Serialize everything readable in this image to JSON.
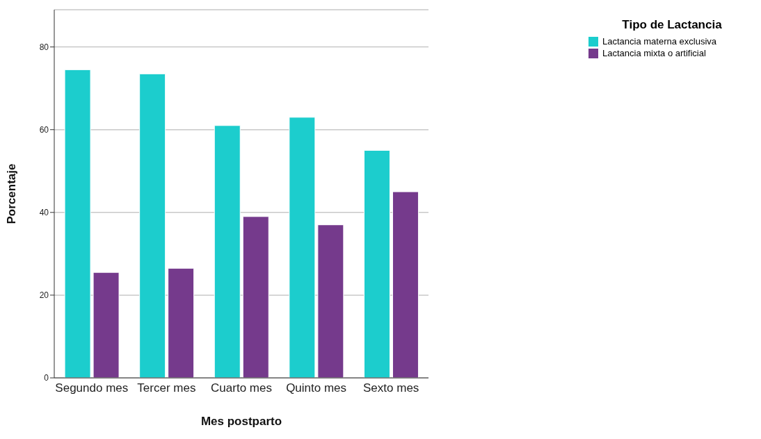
{
  "chart_data": {
    "type": "bar",
    "xlabel": "Mes postparto",
    "ylabel": "Porcentaje",
    "legend_title": "Tipo de Lactancia",
    "categories": [
      "Segundo mes",
      "Tercer mes",
      "Cuarto mes",
      "Quinto mes",
      "Sexto mes"
    ],
    "series": [
      {
        "name": "Lactancia materna exclusiva",
        "color": "#1ccdcd",
        "values": [
          74.5,
          73.5,
          61,
          63,
          55
        ]
      },
      {
        "name": "Lactancia mixta o artificial",
        "color": "#753a8c",
        "values": [
          25.5,
          26.5,
          39,
          37,
          45
        ]
      }
    ],
    "ylim": [
      0,
      89
    ],
    "yticks": [
      0,
      20,
      40,
      60,
      80
    ],
    "grid": "y",
    "legend": "top right"
  }
}
